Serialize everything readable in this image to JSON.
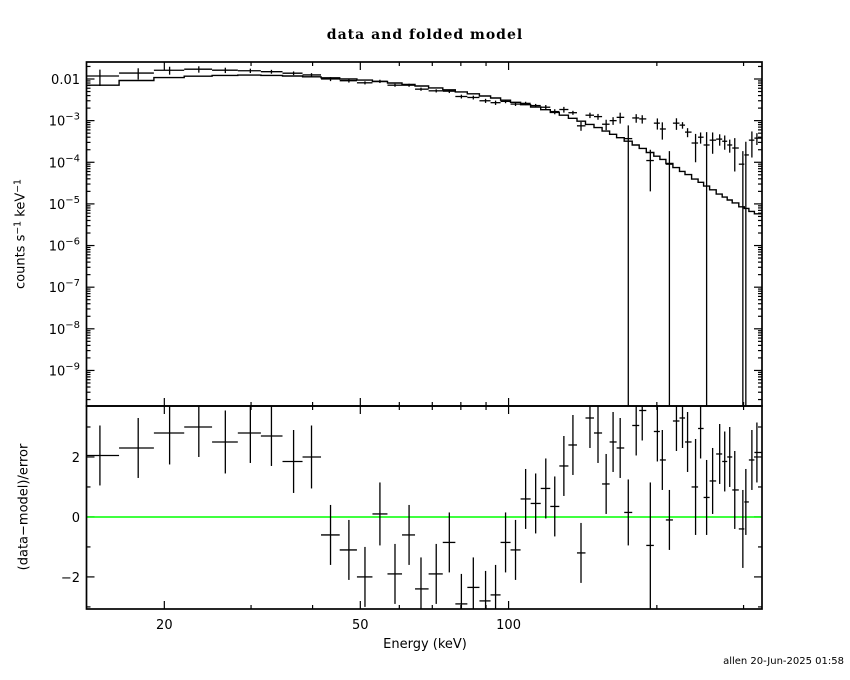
{
  "page": {
    "title": "data and folded model",
    "timestamp": "allen 20-Jun-2025 01:58"
  },
  "colors": {
    "foreground": "#000000",
    "background": "#ffffff",
    "zero_line": "#00ff00"
  },
  "chart_data": [
    {
      "type": "line",
      "panel": "spectrum",
      "title": "data and folded model",
      "xlabel": "Energy (keV)",
      "ylabel": "counts s^-1 keV^-1",
      "ylabel_segments": [
        [
          "counts s",
          0
        ],
        [
          "−1",
          1
        ],
        [
          " keV",
          0
        ],
        [
          "−1",
          1
        ]
      ],
      "xscale": "log",
      "yscale": "log",
      "xlim": [
        13.9,
        327
      ],
      "ylim": [
        1.4e-10,
        0.0256
      ],
      "grid": false,
      "xticks": [
        {
          "value": 20,
          "label": "20"
        },
        {
          "value": 50,
          "label": "50"
        },
        {
          "value": 100,
          "label": "100"
        }
      ],
      "xminor": [
        30,
        40,
        60,
        70,
        80,
        90,
        200,
        300
      ],
      "yticks": [
        {
          "value": 0.01,
          "label": "0.01"
        },
        {
          "value": 0.001,
          "mantissa": "10",
          "exponent": "−3"
        },
        {
          "value": 0.0001,
          "mantissa": "10",
          "exponent": "−4"
        },
        {
          "value": 1e-05,
          "mantissa": "10",
          "exponent": "−5"
        },
        {
          "value": 1e-06,
          "mantissa": "10",
          "exponent": "−6"
        },
        {
          "value": 1e-07,
          "mantissa": "10",
          "exponent": "−7"
        },
        {
          "value": 1e-08,
          "mantissa": "10",
          "exponent": "−8"
        },
        {
          "value": 1e-09,
          "mantissa": "10",
          "exponent": "−9"
        }
      ],
      "series": [
        {
          "name": "data",
          "style": "cross",
          "x": [
            14.8,
            17.7,
            20.5,
            23.5,
            26.6,
            29.9,
            33.0,
            36.6,
            39.8,
            43.5,
            47.4,
            51.1,
            54.8,
            58.8,
            62.8,
            66.4,
            71.3,
            75.8,
            80.2,
            84.8,
            89.8,
            94.1,
            98.6,
            103.3,
            108.3,
            113.5,
            119.0,
            124.1,
            129.5,
            135.1,
            140.3,
            146.3,
            151.9,
            157.8,
            163.0,
            168.5,
            175.0,
            181.6,
            186.8,
            194.0,
            200.5,
            205.2,
            212.1,
            219.2,
            225.5,
            230.9,
            239.7,
            245.4,
            252.4,
            259.6,
            268.3,
            274.7,
            281.2,
            287.9,
            299.0,
            303.2,
            311.9,
            319.3
          ],
          "y": [
            0.0118,
            0.0139,
            0.0162,
            0.0172,
            0.0163,
            0.0158,
            0.015,
            0.0138,
            0.0125,
            0.01,
            0.0091,
            0.0081,
            0.0088,
            0.0071,
            0.0071,
            0.0057,
            0.0052,
            0.0051,
            0.0038,
            0.0036,
            0.003,
            0.0027,
            0.0029,
            0.0025,
            0.0026,
            0.0023,
            0.0021,
            0.00165,
            0.00185,
            0.00155,
            0.00075,
            0.00135,
            0.00125,
            0.00082,
            0.001,
            0.0012,
            0.00037,
            0.00116,
            0.0011,
            0.00011,
            0.00087,
            0.00063,
            9e-05,
            0.00087,
            0.00078,
            0.00053,
            0.00029,
            0.0004,
            0.00026,
            0.00034,
            0.00036,
            0.00032,
            0.00026,
            0.00022,
            9e-05,
            0.00015,
            0.00034,
            0.00038
          ],
          "yerr": [
            0.005,
            0.0042,
            0.0035,
            0.003,
            0.0024,
            0.0019,
            0.0016,
            0.0014,
            0.0013,
            0.0011,
            0.0009,
            0.0007,
            0.0008,
            0.0006,
            0.0006,
            0.0005,
            0.00045,
            0.0005,
            0.0004,
            0.00038,
            0.00034,
            0.00032,
            0.00028,
            0.00025,
            0.00024,
            0.00022,
            0.00027,
            0.00023,
            0.00029,
            0.00017,
            0.00018,
            0.0002,
            0.0002,
            0.00023,
            0.00021,
            0.00035,
            0.0004,
            0.00027,
            0.00025,
            9e-05,
            0.00026,
            0.00028,
            9.5e-05,
            0.00027,
            0.00014,
            0.00013,
            0.00019,
            0.00012,
            0.00027,
            0.00018,
            0.00011,
            0.00012,
            9e-05,
            0.00016,
            9.5e-05,
            0.00016,
            0.00021,
            0.00012
          ]
        },
        {
          "name": "folded model",
          "style": "histogram",
          "x": [
            14.8,
            17.7,
            20.5,
            23.5,
            26.6,
            29.9,
            33.0,
            36.6,
            39.8,
            43.5,
            47.4,
            51.1,
            54.8,
            58.8,
            62.8,
            66.4,
            71.3,
            75.8,
            80.2,
            84.8,
            89.8,
            94.1,
            98.6,
            103.3,
            108.3,
            113.5,
            119.0,
            124.1,
            129.5,
            135.1,
            140.3,
            146.3,
            151.9,
            157.8,
            163.0,
            168.5,
            175.0,
            181.6,
            186.8,
            194.0,
            200.5,
            205.2,
            212.1,
            219.2,
            225.5,
            230.9,
            239.7,
            245.4,
            252.4,
            259.6,
            268.3,
            274.7,
            281.2,
            287.9,
            299.0,
            303.2,
            311.9,
            319.3
          ],
          "y": [
            0.0071,
            0.0092,
            0.0108,
            0.0117,
            0.0122,
            0.0124,
            0.0122,
            0.0118,
            0.0113,
            0.0107,
            0.01,
            0.0094,
            0.0087,
            0.008,
            0.0074,
            0.0068,
            0.0061,
            0.0055,
            0.0049,
            0.0044,
            0.0039,
            0.0035,
            0.0031,
            0.00275,
            0.00242,
            0.00212,
            0.00183,
            0.00158,
            0.00135,
            0.00114,
            0.00097,
            0.00081,
            0.00068,
            0.00056,
            0.00047,
            0.00039,
            0.00032,
            0.00026,
            0.000215,
            0.000172,
            0.00014,
            0.000117,
            9.35e-05,
            7.45e-05,
            6.05e-05,
            5.05e-05,
            3.95e-05,
            3.3e-05,
            2.68e-05,
            2.18e-05,
            1.72e-05,
            1.46e-05,
            1.24e-05,
            1.06e-05,
            8.5e-06,
            7.8e-06,
            6.6e-06,
            5.8e-06
          ]
        }
      ]
    },
    {
      "type": "scatter",
      "panel": "residuals",
      "ylabel": "(data−model)/error",
      "xscale": "log",
      "yscale": "linear",
      "xlim": [
        13.9,
        327
      ],
      "ylim": [
        -3.07,
        3.7
      ],
      "zero_line": 0,
      "zero_line_color": "#00ff00",
      "yticks": [
        {
          "value": 2,
          "label": "2"
        },
        {
          "value": 0,
          "label": "0"
        },
        {
          "value": -2,
          "label": "−2"
        }
      ],
      "yminor": [
        -3,
        -1,
        1,
        3
      ],
      "series": [
        {
          "name": "(data-model)/error",
          "style": "cross",
          "x": [
            14.8,
            17.7,
            20.5,
            23.5,
            26.6,
            29.9,
            33.0,
            36.6,
            39.8,
            43.5,
            47.4,
            51.1,
            54.8,
            58.8,
            62.8,
            66.4,
            71.3,
            75.8,
            80.2,
            84.8,
            89.8,
            94.1,
            98.6,
            103.3,
            108.3,
            113.5,
            119.0,
            124.1,
            129.5,
            135.1,
            140.3,
            146.3,
            151.9,
            157.8,
            163.0,
            168.5,
            175.0,
            181.6,
            186.8,
            194.0,
            200.5,
            205.2,
            212.1,
            219.2,
            225.5,
            230.9,
            239.7,
            245.4,
            252.4,
            259.6,
            268.3,
            274.7,
            281.2,
            287.9,
            299.0,
            303.2,
            311.9,
            319.3
          ],
          "y": [
            2.05,
            2.3,
            2.8,
            3.0,
            2.5,
            2.8,
            2.7,
            1.85,
            2.0,
            -0.6,
            -1.1,
            -2.0,
            0.1,
            -1.9,
            -0.6,
            -2.4,
            -1.9,
            -0.85,
            -2.9,
            -2.35,
            -2.8,
            -2.6,
            -0.85,
            -1.1,
            0.6,
            0.45,
            0.95,
            0.35,
            1.7,
            2.4,
            -1.2,
            3.3,
            2.8,
            1.1,
            2.5,
            2.3,
            0.15,
            3.05,
            3.55,
            -0.95,
            2.85,
            1.9,
            -0.1,
            3.2,
            3.3,
            2.5,
            1.0,
            2.95,
            0.65,
            1.2,
            2.1,
            1.85,
            2.0,
            0.9,
            -0.4,
            0.5,
            1.9,
            2.15
          ],
          "yerr": [
            1.0,
            1.0,
            1.05,
            1.0,
            1.05,
            1.0,
            1.0,
            1.05,
            1.05,
            1.0,
            1.0,
            1.0,
            1.05,
            1.0,
            1.0,
            1.05,
            1.0,
            1.0,
            1.0,
            1.0,
            1.0,
            1.0,
            1.0,
            1.0,
            1.0,
            1.0,
            1.0,
            1.0,
            1.0,
            1.0,
            1.0,
            1.0,
            1.0,
            1.0,
            1.0,
            1.0,
            1.1,
            1.0,
            1.0,
            2.1,
            1.0,
            1.0,
            1.0,
            1.0,
            1.0,
            1.0,
            1.6,
            1.0,
            1.25,
            1.1,
            1.0,
            1.0,
            1.0,
            1.3,
            1.3,
            1.1,
            1.0,
            1.0
          ]
        }
      ]
    }
  ]
}
